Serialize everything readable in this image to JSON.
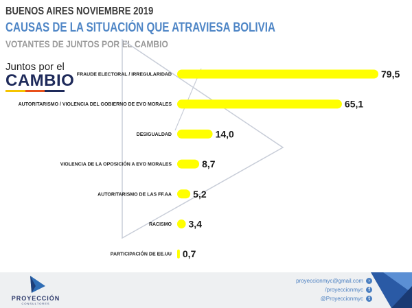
{
  "header": {
    "date": "BUENOS AIRES NOVIEMBRE 2019",
    "title": "CAUSAS DE LA SITUACIÓN QUE ATRAVIESA BOLIVIA",
    "subtitle": "VOTANTES DE JUNTOS POR EL CAMBIO"
  },
  "logo": {
    "line1": "Juntos por el",
    "line2": "CAMBIO"
  },
  "colors": {
    "bar": "#ffff00",
    "title": "#4f86c6",
    "brand": "#2d3a6b"
  },
  "chart_data": {
    "type": "bar",
    "orientation": "horizontal",
    "categories": [
      "FRAUDE ELECTORAL / IRREGULARIDAD",
      "AUTORITARISMO / VIOLENCIA DEL GOBIERNO DE EVO MORALES",
      "DESIGUALDAD",
      "VIOLENCIA DE LA OPOSICIÓN A EVO MORALES",
      "AUTORITARISMO DE LAS FF.AA",
      "RACISMO",
      "PARTICIPACIÓN DE EE.UU"
    ],
    "values": [
      79.5,
      65.1,
      14.0,
      8.7,
      5.2,
      3.4,
      0.7
    ],
    "value_labels": [
      "79,5",
      "65,1",
      "14,0",
      "8,7",
      "5,2",
      "3,4",
      "0,7"
    ],
    "xlim": [
      0,
      79.5
    ],
    "grid": false,
    "legend": "none"
  },
  "footer": {
    "brand": "PROYECCIÓN",
    "brand_sub": "CONSULTORES",
    "email": "proyeccionmyc@gmail.com",
    "facebook": "/proyeccionmyc",
    "twitter": "@Proyeccionmyc",
    "email_icon": "arrow-icon",
    "facebook_icon": "facebook-icon",
    "twitter_icon": "twitter-icon"
  }
}
